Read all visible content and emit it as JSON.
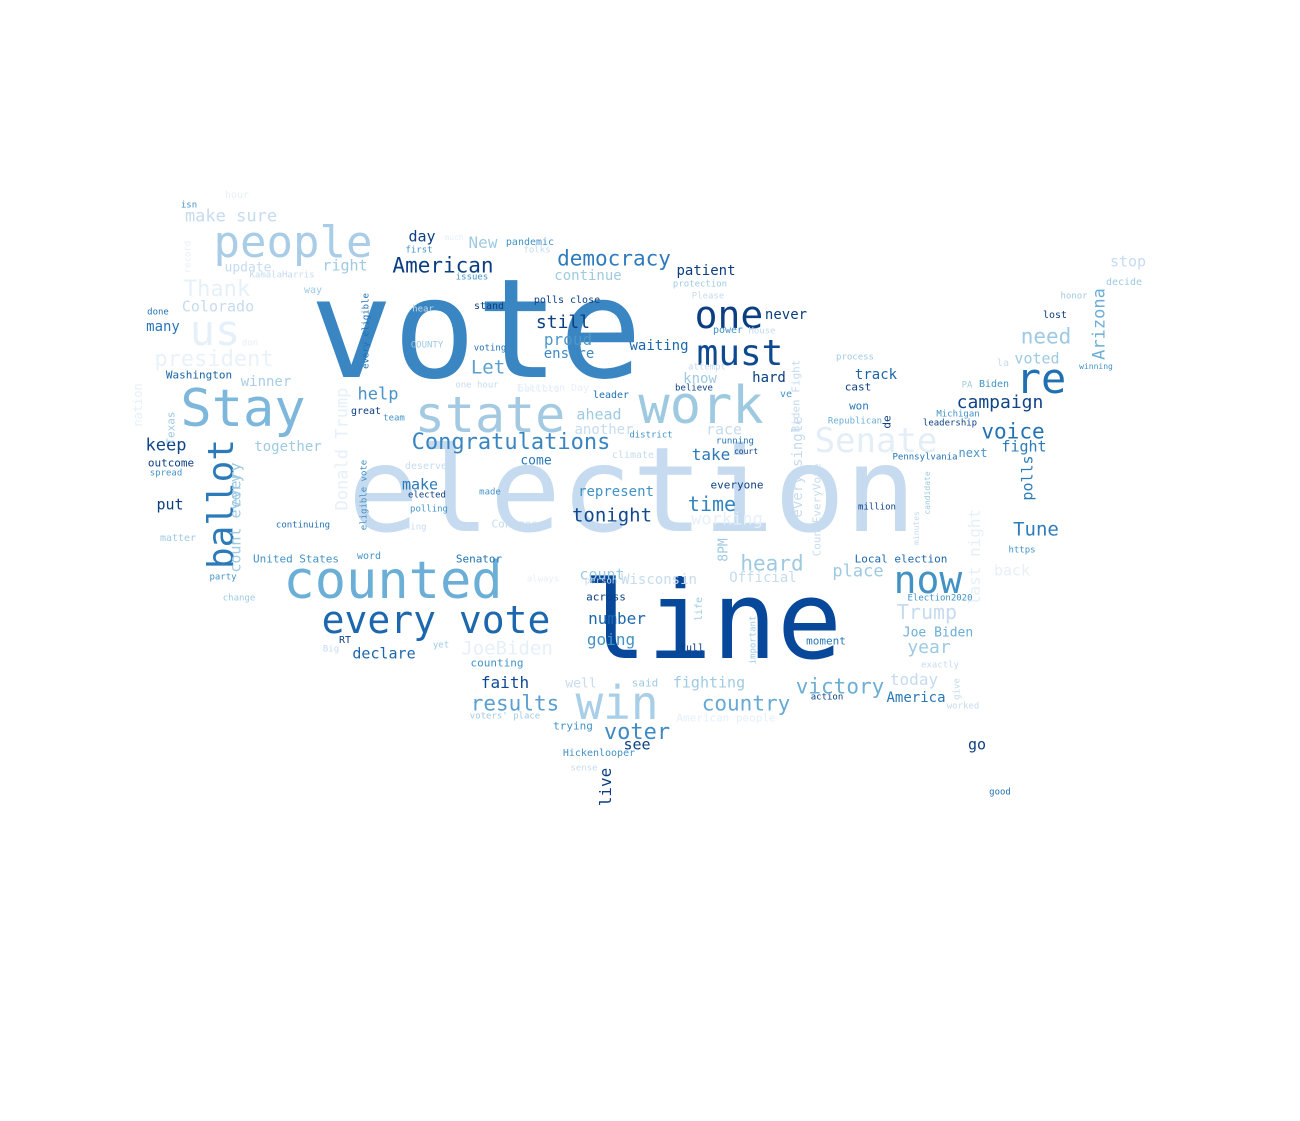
{
  "palette": [
    "#08306b",
    "#08519c",
    "#2171b5",
    "#4292c6",
    "#6baed6",
    "#9ecae1",
    "#c6dbef",
    "#deebf7"
  ],
  "words": [
    {
      "t": "election",
      "c": "#c6dbef"
    },
    {
      "t": "vote",
      "c": "#3a86c2"
    },
    {
      "t": "line",
      "c": "#08489a"
    },
    {
      "t": "counted",
      "c": "#6baed6"
    },
    {
      "t": "people",
      "c": "#a9cde6"
    },
    {
      "t": "Stay",
      "c": "#7db8dc"
    },
    {
      "t": "state",
      "c": "#a4cae3"
    },
    {
      "t": "work",
      "c": "#9ecae1"
    },
    {
      "t": "win",
      "c": "#a8cfe7"
    },
    {
      "t": "re",
      "c": "#1f6fb3"
    },
    {
      "t": "every vote",
      "c": "#1c67ad"
    },
    {
      "t": "one",
      "c": "#0c3f82"
    },
    {
      "t": "must",
      "c": "#0f4a91"
    },
    {
      "t": "Senate",
      "c": "#e3eef8"
    },
    {
      "t": "us",
      "c": "#e6f0f9"
    },
    {
      "t": "ballot",
      "c": "#2c7bb8"
    },
    {
      "t": "now",
      "c": "#4292c6"
    },
    {
      "t": "Congratulations",
      "c": "#3985c1"
    },
    {
      "t": "American",
      "c": "#0b3e81"
    },
    {
      "t": "democracy",
      "c": "#2f7bbc"
    },
    {
      "t": "Thank",
      "c": "#e6f0f9"
    },
    {
      "t": "president",
      "c": "#e9f2fa"
    },
    {
      "t": "voter",
      "c": "#3e8ac3"
    },
    {
      "t": "heard",
      "c": "#9ecae1"
    },
    {
      "t": "results",
      "c": "#5a9fd0"
    },
    {
      "t": "country",
      "c": "#66a9d5"
    },
    {
      "t": "victory",
      "c": "#6daed6"
    },
    {
      "t": "time",
      "c": "#3585c0"
    },
    {
      "t": "tonight",
      "c": "#10498f"
    },
    {
      "t": "Trump",
      "c": "#c6dbef"
    },
    {
      "t": "need",
      "c": "#9dc9e2"
    },
    {
      "t": "voice",
      "c": "#2272b4"
    },
    {
      "t": "campaign",
      "c": "#0e4589"
    },
    {
      "t": "Tune",
      "c": "#2e7cbb"
    },
    {
      "t": "Let",
      "c": "#5a9fd0"
    },
    {
      "t": "still",
      "c": "#0c3f82"
    },
    {
      "t": "proud",
      "c": "#4d97c9"
    },
    {
      "t": "ensure",
      "c": "#3d89c3"
    },
    {
      "t": "waiting",
      "c": "#1c67ad"
    },
    {
      "t": "patient",
      "c": "#0b3e81"
    },
    {
      "t": "never",
      "c": "#0b3e81"
    },
    {
      "t": "hard",
      "c": "#0c3f82"
    },
    {
      "t": "track",
      "c": "#1b65ab"
    },
    {
      "t": "cast",
      "c": "#0c3f82"
    },
    {
      "t": "won",
      "c": "#2a77b8"
    },
    {
      "t": "Arizona",
      "c": "#6daed6"
    },
    {
      "t": "voted",
      "c": "#9ecae1"
    },
    {
      "t": "fight",
      "c": "#2c7bb8"
    },
    {
      "t": "polls",
      "c": "#2c7bb8"
    },
    {
      "t": "next",
      "c": "#4b94c8"
    },
    {
      "t": "keep",
      "c": "#0e4589"
    },
    {
      "t": "help",
      "c": "#4a93c8"
    },
    {
      "t": "make sure",
      "c": "#c6dbef"
    },
    {
      "t": "day",
      "c": "#0c3f82"
    },
    {
      "t": "New",
      "c": "#9ecae1"
    },
    {
      "t": "right",
      "c": "#9ecae1"
    },
    {
      "t": "update",
      "c": "#c6dbef"
    },
    {
      "t": "Colorado",
      "c": "#c6dbef"
    },
    {
      "t": "many",
      "c": "#2a77b8"
    },
    {
      "t": "Washington",
      "c": "#1a64aa"
    },
    {
      "t": "winner",
      "c": "#a9cde6"
    },
    {
      "t": "together",
      "c": "#9ecae1"
    },
    {
      "t": "outcome",
      "c": "#0c3f82"
    },
    {
      "t": "spread",
      "c": "#4292c6"
    },
    {
      "t": "put",
      "c": "#0c3f82"
    },
    {
      "t": "matter",
      "c": "#9ecae1"
    },
    {
      "t": "United States",
      "c": "#4292c6"
    },
    {
      "t": "word",
      "c": "#4292c6"
    },
    {
      "t": "Senator",
      "c": "#2171b5"
    },
    {
      "t": "party",
      "c": "#4292c6"
    },
    {
      "t": "change",
      "c": "#9ecae1"
    },
    {
      "t": "declare",
      "c": "#1c67ad"
    },
    {
      "t": "JoeBiden",
      "c": "#e6f0f9"
    },
    {
      "t": "faith",
      "c": "#0f4a91"
    },
    {
      "t": "come",
      "c": "#2a77b8"
    },
    {
      "t": "make",
      "c": "#2a77b8"
    },
    {
      "t": "represent",
      "c": "#4292c6"
    },
    {
      "t": "take",
      "c": "#2a77b8"
    },
    {
      "t": "ahead",
      "c": "#9ecae1"
    },
    {
      "t": "another",
      "c": "#c6dbef"
    },
    {
      "t": "race",
      "c": "#c6dbef"
    },
    {
      "t": "know",
      "c": "#9ecae1"
    },
    {
      "t": "continue",
      "c": "#9ecae1"
    },
    {
      "t": "working",
      "c": "#e6f0f9"
    },
    {
      "t": "count",
      "c": "#9ecae1"
    },
    {
      "t": "number",
      "c": "#1c67ad"
    },
    {
      "t": "going",
      "c": "#4292c6"
    },
    {
      "t": "fighting",
      "c": "#9ecae1"
    },
    {
      "t": "well",
      "c": "#c6dbef"
    },
    {
      "t": "see",
      "c": "#0c3f82"
    },
    {
      "t": "across",
      "c": "#0c3f82"
    },
    {
      "t": "place",
      "c": "#9ecae1"
    },
    {
      "t": "year",
      "c": "#9ecae1"
    },
    {
      "t": "Joe Biden",
      "c": "#6baed6"
    },
    {
      "t": "today",
      "c": "#c6dbef"
    },
    {
      "t": "America",
      "c": "#2a77b8"
    },
    {
      "t": "go",
      "c": "#0c3f82"
    },
    {
      "t": "back",
      "c": "#e6f0f9"
    },
    {
      "t": "everyone",
      "c": "#0c3f82"
    },
    {
      "t": "Local election",
      "c": "#1c67ad"
    },
    {
      "t": "https",
      "c": "#4292c6"
    },
    {
      "t": "Donald Trump",
      "c": "#e6f0f9"
    },
    {
      "t": "every",
      "c": "#9ecae1"
    },
    {
      "t": "count every",
      "c": "#9ecae1"
    },
    {
      "t": "live",
      "c": "#0c3f82"
    },
    {
      "t": "8PM",
      "c": "#9ecae1"
    },
    {
      "t": "last night",
      "c": "#e6f0f9"
    },
    {
      "t": "Wisconsin",
      "c": "#c6dbef"
    },
    {
      "t": "Official",
      "c": "#c6dbef"
    },
    {
      "t": "every single",
      "c": "#c6dbef"
    },
    {
      "t": "CountEveryVote",
      "c": "#c6dbef"
    },
    {
      "t": "Biden Fight",
      "c": "#c6dbef"
    },
    {
      "t": "American people",
      "c": "#e6f0f9"
    },
    {
      "t": "voters' place",
      "c": "#9ecae1"
    },
    {
      "t": "trying",
      "c": "#4292c6"
    },
    {
      "t": "Hickenlooper",
      "c": "#4292c6"
    },
    {
      "t": "sense",
      "c": "#c6dbef"
    },
    {
      "t": "full",
      "c": "#0c3f82"
    },
    {
      "t": "moment",
      "c": "#2a77b8"
    },
    {
      "t": "exactly",
      "c": "#c6dbef"
    },
    {
      "t": "give",
      "c": "#c6dbef"
    },
    {
      "t": "worked",
      "c": "#c6dbef"
    },
    {
      "t": "action",
      "c": "#0c3f82"
    },
    {
      "t": "important",
      "c": "#9ecae1"
    },
    {
      "t": "life",
      "c": "#9ecae1"
    },
    {
      "t": "counting",
      "c": "#4292c6"
    },
    {
      "t": "said",
      "c": "#9ecae1"
    },
    {
      "t": "Congress",
      "c": "#c6dbef"
    },
    {
      "t": "hour",
      "c": "#e6f0f9"
    },
    {
      "t": "isn",
      "c": "#4292c6"
    },
    {
      "t": "record",
      "c": "#e6f0f9"
    },
    {
      "t": "much",
      "c": "#e6f0f9"
    },
    {
      "t": "first",
      "c": "#4292c6"
    },
    {
      "t": "pandemic",
      "c": "#4292c6"
    },
    {
      "t": "folks",
      "c": "#c6dbef"
    },
    {
      "t": "issues",
      "c": "#4292c6"
    },
    {
      "t": "KamalaHarris",
      "c": "#c6dbef"
    },
    {
      "t": "way",
      "c": "#9ecae1"
    },
    {
      "t": "done",
      "c": "#2171b5"
    },
    {
      "t": "stand",
      "c": "#0c3f82"
    },
    {
      "t": "polls close",
      "c": "#0c3f82"
    },
    {
      "t": "protection",
      "c": "#9ecae1"
    },
    {
      "t": "Please",
      "c": "#c6dbef"
    },
    {
      "t": "power",
      "c": "#4292c6"
    },
    {
      "t": "House",
      "c": "#c6dbef"
    },
    {
      "t": "process",
      "c": "#9ecae1"
    },
    {
      "t": "stop",
      "c": "#c6dbef"
    },
    {
      "t": "decide",
      "c": "#9ecae1"
    },
    {
      "t": "honor",
      "c": "#9ecae1"
    },
    {
      "t": "lost",
      "c": "#0c3f82"
    },
    {
      "t": "winning",
      "c": "#4292c6"
    },
    {
      "t": "la",
      "c": "#c6dbef"
    },
    {
      "t": "PA",
      "c": "#9ecae1"
    },
    {
      "t": "Biden",
      "c": "#4292c6"
    },
    {
      "t": "Michigan",
      "c": "#4292c6"
    },
    {
      "t": "leadership",
      "c": "#0c3f82"
    },
    {
      "t": "Republican",
      "c": "#6baed6"
    },
    {
      "t": "de",
      "c": "#0c3f82"
    },
    {
      "t": "ve",
      "c": "#4292c6"
    },
    {
      "t": "leader",
      "c": "#2171b5"
    },
    {
      "t": "district",
      "c": "#4292c6"
    },
    {
      "t": "running",
      "c": "#2171b5"
    },
    {
      "t": "court",
      "c": "#0c3f82"
    },
    {
      "t": "Pennsylvania",
      "c": "#2171b5"
    },
    {
      "t": "candidate",
      "c": "#9ecae1"
    },
    {
      "t": "minutes",
      "c": "#c6dbef"
    },
    {
      "t": "million",
      "c": "#0c3f82"
    },
    {
      "t": "Election2020",
      "c": "#4292c6"
    },
    {
      "t": "every eligible",
      "c": "#2171b5"
    },
    {
      "t": "eligible vote",
      "c": "#4292c6"
    },
    {
      "t": "voting",
      "c": "#2171b5"
    },
    {
      "t": "one hour",
      "c": "#c6dbef"
    },
    {
      "t": "Election Day",
      "c": "#e6f0f9"
    },
    {
      "t": "COUNTY",
      "c": "#9ecae1"
    },
    {
      "t": "don",
      "c": "#e6f0f9"
    },
    {
      "t": "great",
      "c": "#0c3f82"
    },
    {
      "t": "team",
      "c": "#4292c6"
    },
    {
      "t": "nation",
      "c": "#e6f0f9"
    },
    {
      "t": "Texas",
      "c": "#9ecae1"
    },
    {
      "t": "deserve",
      "c": "#c6dbef"
    },
    {
      "t": "climate",
      "c": "#c6dbef"
    },
    {
      "t": "elected",
      "c": "#0c3f82"
    },
    {
      "t": "made",
      "c": "#4292c6"
    },
    {
      "t": "polling",
      "c": "#4292c6"
    },
    {
      "t": "thing",
      "c": "#c6dbef"
    },
    {
      "t": "continuing",
      "c": "#2171b5"
    },
    {
      "t": "always",
      "c": "#e6f0f9"
    },
    {
      "t": "person",
      "c": "#c6dbef"
    },
    {
      "t": "RT",
      "c": "#0c3f82"
    },
    {
      "t": "Big",
      "c": "#c6dbef"
    },
    {
      "t": "yet",
      "c": "#9ecae1"
    },
    {
      "t": "believe",
      "c": "#0c3f82"
    },
    {
      "t": "ballots",
      "c": "#e6f0f9"
    },
    {
      "t": "good",
      "c": "#2171b5"
    },
    {
      "t": "attempt",
      "c": "#c6dbef"
    },
    {
      "t": "hear",
      "c": "#c6dbef"
    }
  ]
}
